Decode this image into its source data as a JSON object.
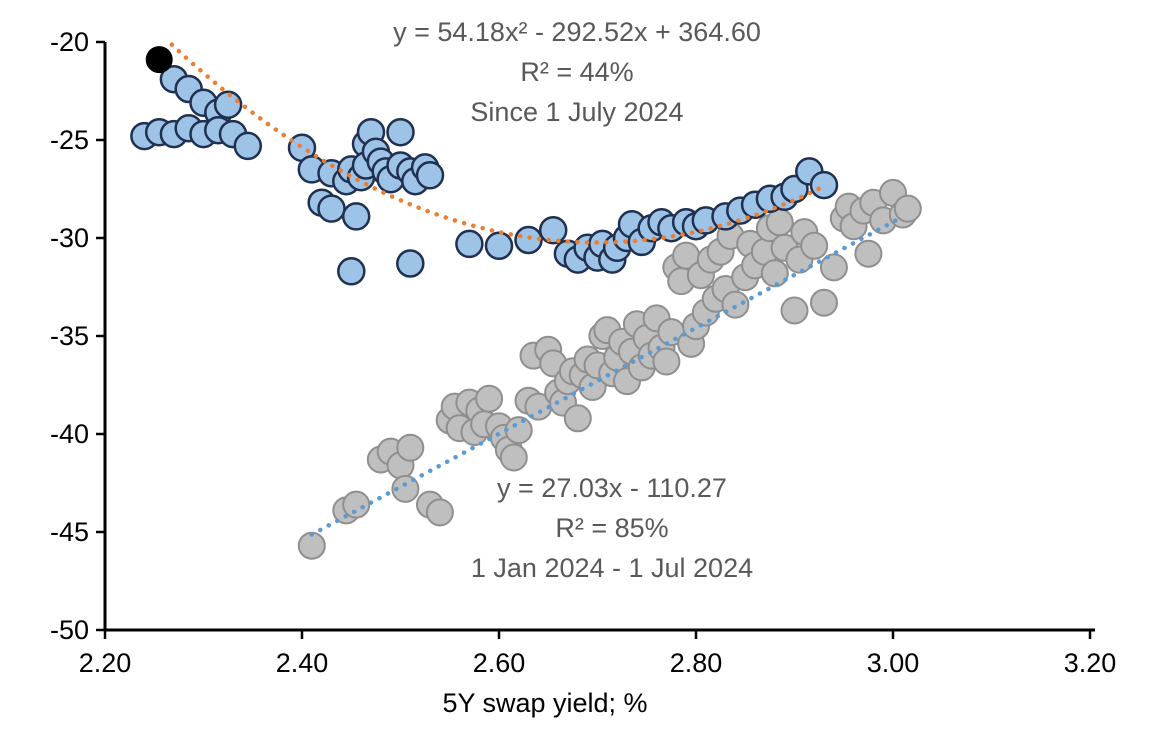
{
  "chart_data": {
    "type": "scatter",
    "title": "",
    "xlabel": "5Y swap yield; %",
    "ylabel": "",
    "xlim": [
      2.2,
      3.2
    ],
    "ylim": [
      -50,
      -20
    ],
    "grid": false,
    "legend_position": "none",
    "x_ticks": [
      {
        "value": 2.2,
        "label": "2.20"
      },
      {
        "value": 2.4,
        "label": "2.40"
      },
      {
        "value": 2.6,
        "label": "2.60"
      },
      {
        "value": 2.8,
        "label": "2.80"
      },
      {
        "value": 3.0,
        "label": "3.00"
      },
      {
        "value": 3.2,
        "label": "3.20"
      }
    ],
    "y_ticks": [
      {
        "value": -50,
        "label": "-50"
      },
      {
        "value": -45,
        "label": "-45"
      },
      {
        "value": -40,
        "label": "-40"
      },
      {
        "value": -35,
        "label": "-35"
      },
      {
        "value": -30,
        "label": "-30"
      },
      {
        "value": -25,
        "label": "-25"
      },
      {
        "value": -20,
        "label": "-20"
      }
    ],
    "series": [
      {
        "name": "1 Jan 2024 - 1 Jul 2024",
        "marker_fill": "#BFBFBF",
        "marker_stroke": "#8F8F8F",
        "marker_radius": 13,
        "marker_stroke_width": 2,
        "points": [
          [
            2.41,
            -45.7
          ],
          [
            2.445,
            -43.9
          ],
          [
            2.455,
            -43.6
          ],
          [
            2.48,
            -41.3
          ],
          [
            2.49,
            -40.9
          ],
          [
            2.5,
            -41.6
          ],
          [
            2.505,
            -42.8
          ],
          [
            2.51,
            -40.7
          ],
          [
            2.53,
            -43.6
          ],
          [
            2.54,
            -44.0
          ],
          [
            2.55,
            -39.3
          ],
          [
            2.555,
            -38.6
          ],
          [
            2.56,
            -39.7
          ],
          [
            2.57,
            -38.4
          ],
          [
            2.575,
            -39.9
          ],
          [
            2.58,
            -38.8
          ],
          [
            2.585,
            -39.5
          ],
          [
            2.59,
            -38.2
          ],
          [
            2.6,
            -39.6
          ],
          [
            2.605,
            -40.2
          ],
          [
            2.61,
            -40.8
          ],
          [
            2.615,
            -41.2
          ],
          [
            2.62,
            -39.8
          ],
          [
            2.63,
            -38.3
          ],
          [
            2.635,
            -36.0
          ],
          [
            2.64,
            -38.6
          ],
          [
            2.65,
            -35.7
          ],
          [
            2.655,
            -36.4
          ],
          [
            2.66,
            -37.9
          ],
          [
            2.665,
            -38.4
          ],
          [
            2.67,
            -37.3
          ],
          [
            2.675,
            -36.8
          ],
          [
            2.68,
            -39.2
          ],
          [
            2.685,
            -37.0
          ],
          [
            2.69,
            -36.2
          ],
          [
            2.695,
            -37.6
          ],
          [
            2.7,
            -36.5
          ],
          [
            2.705,
            -35.0
          ],
          [
            2.71,
            -34.7
          ],
          [
            2.715,
            -36.9
          ],
          [
            2.72,
            -36.1
          ],
          [
            2.725,
            -35.3
          ],
          [
            2.73,
            -37.3
          ],
          [
            2.735,
            -35.8
          ],
          [
            2.74,
            -34.4
          ],
          [
            2.745,
            -36.6
          ],
          [
            2.75,
            -35.1
          ],
          [
            2.755,
            -36.0
          ],
          [
            2.76,
            -34.1
          ],
          [
            2.765,
            -35.6
          ],
          [
            2.77,
            -36.3
          ],
          [
            2.775,
            -34.8
          ],
          [
            2.78,
            -31.5
          ],
          [
            2.785,
            -32.2
          ],
          [
            2.79,
            -30.9
          ],
          [
            2.795,
            -35.4
          ],
          [
            2.8,
            -34.5
          ],
          [
            2.805,
            -31.9
          ],
          [
            2.81,
            -33.8
          ],
          [
            2.815,
            -31.1
          ],
          [
            2.82,
            -33.1
          ],
          [
            2.825,
            -30.7
          ],
          [
            2.83,
            -32.6
          ],
          [
            2.835,
            -29.9
          ],
          [
            2.84,
            -33.4
          ],
          [
            2.85,
            -32.0
          ],
          [
            2.855,
            -30.3
          ],
          [
            2.86,
            -31.4
          ],
          [
            2.87,
            -30.7
          ],
          [
            2.875,
            -29.5
          ],
          [
            2.88,
            -31.8
          ],
          [
            2.885,
            -29.2
          ],
          [
            2.89,
            -30.5
          ],
          [
            2.9,
            -33.7
          ],
          [
            2.905,
            -31.1
          ],
          [
            2.91,
            -29.7
          ],
          [
            2.92,
            -30.4
          ],
          [
            2.93,
            -33.3
          ],
          [
            2.94,
            -31.5
          ],
          [
            2.95,
            -29.0
          ],
          [
            2.955,
            -28.4
          ],
          [
            2.96,
            -29.4
          ],
          [
            2.97,
            -28.6
          ],
          [
            2.975,
            -30.8
          ],
          [
            2.98,
            -28.2
          ],
          [
            2.99,
            -29.1
          ],
          [
            3.0,
            -27.7
          ],
          [
            3.01,
            -28.8
          ],
          [
            3.015,
            -28.5
          ]
        ]
      },
      {
        "name": "Since 1 July 2024",
        "marker_fill": "#9DC3E6",
        "marker_stroke": "#1F3050",
        "marker_radius": 13,
        "marker_stroke_width": 2.5,
        "points": [
          [
            2.24,
            -24.8
          ],
          [
            2.255,
            -24.6
          ],
          [
            2.27,
            -24.7
          ],
          [
            2.27,
            -21.9
          ],
          [
            2.285,
            -22.4
          ],
          [
            2.285,
            -24.4
          ],
          [
            2.3,
            -24.7
          ],
          [
            2.3,
            -23.1
          ],
          [
            2.315,
            -23.6
          ],
          [
            2.315,
            -24.5
          ],
          [
            2.325,
            -23.2
          ],
          [
            2.33,
            -24.7
          ],
          [
            2.345,
            -25.3
          ],
          [
            2.4,
            -25.4
          ],
          [
            2.41,
            -26.5
          ],
          [
            2.42,
            -28.2
          ],
          [
            2.43,
            -26.7
          ],
          [
            2.43,
            -28.5
          ],
          [
            2.445,
            -27.1
          ],
          [
            2.45,
            -26.5
          ],
          [
            2.45,
            -31.7
          ],
          [
            2.455,
            -28.9
          ],
          [
            2.46,
            -26.9
          ],
          [
            2.465,
            -25.2
          ],
          [
            2.465,
            -26.3
          ],
          [
            2.47,
            -24.6
          ],
          [
            2.475,
            -25.6
          ],
          [
            2.48,
            -26.1
          ],
          [
            2.485,
            -26.6
          ],
          [
            2.49,
            -27.0
          ],
          [
            2.5,
            -24.6
          ],
          [
            2.5,
            -26.3
          ],
          [
            2.51,
            -26.6
          ],
          [
            2.51,
            -31.3
          ],
          [
            2.515,
            -27.1
          ],
          [
            2.525,
            -26.4
          ],
          [
            2.53,
            -26.8
          ],
          [
            2.57,
            -30.3
          ],
          [
            2.6,
            -30.4
          ],
          [
            2.63,
            -30.1
          ],
          [
            2.655,
            -29.6
          ],
          [
            2.67,
            -30.8
          ],
          [
            2.68,
            -31.1
          ],
          [
            2.69,
            -30.5
          ],
          [
            2.7,
            -31.0
          ],
          [
            2.705,
            -30.3
          ],
          [
            2.715,
            -31.1
          ],
          [
            2.72,
            -30.5
          ],
          [
            2.73,
            -30.0
          ],
          [
            2.735,
            -29.3
          ],
          [
            2.745,
            -30.2
          ],
          [
            2.755,
            -29.5
          ],
          [
            2.765,
            -29.2
          ],
          [
            2.775,
            -29.5
          ],
          [
            2.79,
            -29.2
          ],
          [
            2.8,
            -29.4
          ],
          [
            2.81,
            -29.1
          ],
          [
            2.83,
            -28.9
          ],
          [
            2.845,
            -28.6
          ],
          [
            2.86,
            -28.3
          ],
          [
            2.875,
            -28.0
          ],
          [
            2.89,
            -27.9
          ],
          [
            2.9,
            -27.5
          ],
          [
            2.915,
            -26.6
          ],
          [
            2.93,
            -27.3
          ]
        ]
      }
    ],
    "latest_point": {
      "name": "Latest observation",
      "x": 2.255,
      "y": -20.9,
      "fill": "#000000",
      "radius": 13.5
    },
    "trendlines": [
      {
        "series": "Since 1 July 2024",
        "type": "poly2",
        "a": 54.18,
        "b": -292.52,
        "c": 364.6,
        "color": "#ED7D31",
        "x_range": [
          2.245,
          2.93
        ]
      },
      {
        "series": "1 Jan 2024 - 1 Jul 2024",
        "type": "linear",
        "m": 27.03,
        "b": -110.27,
        "color": "#5B9BD5",
        "x_range": [
          2.41,
          3.005
        ]
      }
    ],
    "annotations": [
      {
        "id": "since-july",
        "lines": [
          "y = 54.18x² - 292.52x + 364.60",
          "R² = 44%",
          "Since 1 July 2024"
        ]
      },
      {
        "id": "first-half",
        "lines": [
          "y = 27.03x - 110.27",
          "R² = 85%",
          "1 Jan 2024 - 1 Jul 2024"
        ]
      }
    ],
    "colors": {
      "axis": "#000000",
      "annotation_text": "#595959",
      "recent_fill": "#9DC3E6",
      "older_fill": "#BFBFBF",
      "recent_trend": "#ED7D31",
      "older_trend": "#5B9BD5",
      "latest_fill": "#000000"
    }
  }
}
